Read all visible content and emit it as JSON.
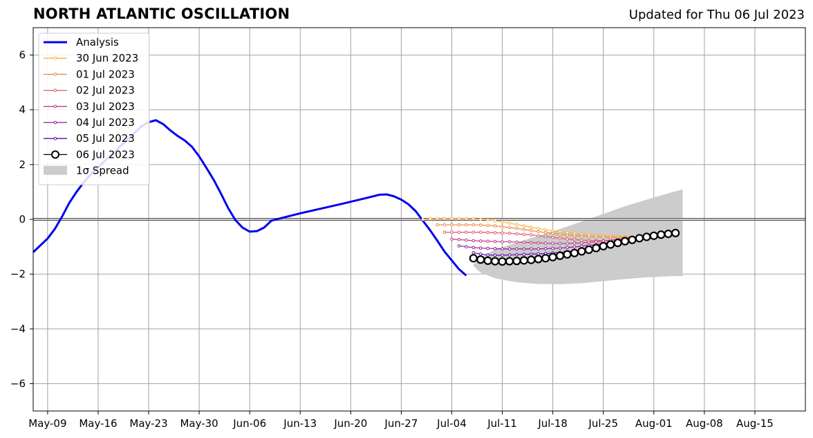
{
  "chart_data": {
    "type": "line",
    "title": "NORTH ATLANTIC OSCILLATION",
    "subtitle": "Updated for Thu 06 Jul 2023",
    "xlim": [
      "2023-05-07",
      "2023-08-22"
    ],
    "ylim": [
      -7,
      7
    ],
    "yticks": [
      -6,
      -4,
      -2,
      0,
      2,
      4,
      6
    ],
    "ytick_labels": [
      "−6",
      "−4",
      "−2",
      "0",
      "2",
      "4",
      "6"
    ],
    "xticks": [
      "2023-05-09",
      "2023-05-16",
      "2023-05-23",
      "2023-05-30",
      "2023-06-06",
      "2023-06-13",
      "2023-06-20",
      "2023-06-27",
      "2023-07-04",
      "2023-07-11",
      "2023-07-18",
      "2023-07-25",
      "2023-08-01",
      "2023-08-08",
      "2023-08-15"
    ],
    "xtick_labels": [
      "May-09",
      "May-16",
      "May-23",
      "May-30",
      "Jun-06",
      "Jun-13",
      "Jun-20",
      "Jun-27",
      "Jul-04",
      "Jul-11",
      "Jul-18",
      "Jul-25",
      "Aug-01",
      "Aug-08",
      "Aug-15"
    ],
    "grid": true,
    "zero_line": true,
    "legend_position": "top-left",
    "analysis": {
      "name": "Analysis",
      "color": "#0000ee",
      "points": [
        [
          "2023-05-07",
          -1.2
        ],
        [
          "2023-05-09",
          -0.7
        ],
        [
          "2023-05-10",
          -0.35
        ],
        [
          "2023-05-11",
          0.1
        ],
        [
          "2023-05-12",
          0.6
        ],
        [
          "2023-05-13",
          1.0
        ],
        [
          "2023-05-14",
          1.35
        ],
        [
          "2023-05-15",
          1.65
        ],
        [
          "2023-05-16",
          1.9
        ],
        [
          "2023-05-17",
          2.15
        ],
        [
          "2023-05-18",
          2.4
        ],
        [
          "2023-05-19",
          2.65
        ],
        [
          "2023-05-20",
          2.9
        ],
        [
          "2023-05-21",
          3.15
        ],
        [
          "2023-05-22",
          3.4
        ],
        [
          "2023-05-23",
          3.55
        ],
        [
          "2023-05-24",
          3.62
        ],
        [
          "2023-05-25",
          3.48
        ],
        [
          "2023-05-26",
          3.25
        ],
        [
          "2023-05-27",
          3.05
        ],
        [
          "2023-05-28",
          2.88
        ],
        [
          "2023-05-29",
          2.65
        ],
        [
          "2023-05-30",
          2.3
        ],
        [
          "2023-05-31",
          1.88
        ],
        [
          "2023-06-01",
          1.45
        ],
        [
          "2023-06-02",
          0.95
        ],
        [
          "2023-06-03",
          0.42
        ],
        [
          "2023-06-04",
          -0.02
        ],
        [
          "2023-06-05",
          -0.3
        ],
        [
          "2023-06-06",
          -0.45
        ],
        [
          "2023-06-07",
          -0.43
        ],
        [
          "2023-06-08",
          -0.3
        ],
        [
          "2023-06-09",
          -0.05
        ],
        [
          "2023-06-10",
          0.02
        ],
        [
          "2023-06-13",
          0.22
        ],
        [
          "2023-06-16",
          0.4
        ],
        [
          "2023-06-19",
          0.58
        ],
        [
          "2023-06-22",
          0.77
        ],
        [
          "2023-06-24",
          0.9
        ],
        [
          "2023-06-25",
          0.91
        ],
        [
          "2023-06-26",
          0.84
        ],
        [
          "2023-06-27",
          0.72
        ],
        [
          "2023-06-28",
          0.55
        ],
        [
          "2023-06-29",
          0.3
        ],
        [
          "2023-06-30",
          -0.05
        ],
        [
          "2023-07-01",
          -0.4
        ],
        [
          "2023-07-02",
          -0.78
        ],
        [
          "2023-07-03",
          -1.18
        ],
        [
          "2023-07-04",
          -1.5
        ],
        [
          "2023-07-05",
          -1.82
        ],
        [
          "2023-07-06",
          -2.05
        ]
      ]
    },
    "forecasts": [
      {
        "name": "30 Jun 2023",
        "color": "#f9b23f",
        "start": "2023-06-30",
        "values": [
          0.0,
          0.02,
          0.03,
          0.03,
          0.03,
          0.03,
          0.03,
          0.02,
          0.0,
          -0.02,
          -0.05,
          -0.09,
          -0.14,
          -0.19,
          -0.24,
          -0.29,
          -0.34,
          -0.38,
          -0.42,
          -0.45,
          -0.48,
          -0.51,
          -0.54,
          -0.56,
          -0.58,
          -0.6,
          -0.61,
          -0.62,
          -0.63,
          -0.63
        ]
      },
      {
        "name": "01 Jul 2023",
        "color": "#ee8540",
        "start": "2023-07-02",
        "values": [
          -0.2,
          -0.2,
          -0.2,
          -0.2,
          -0.2,
          -0.2,
          -0.21,
          -0.22,
          -0.24,
          -0.27,
          -0.3,
          -0.33,
          -0.37,
          -0.41,
          -0.45,
          -0.48,
          -0.51,
          -0.54,
          -0.57,
          -0.59,
          -0.61,
          -0.63,
          -0.64,
          -0.65,
          -0.66,
          -0.66,
          -0.66,
          -0.65,
          -0.64
        ]
      },
      {
        "name": "02 Jul 2023",
        "color": "#dc5a6a",
        "start": "2023-07-03",
        "values": [
          -0.47,
          -0.47,
          -0.47,
          -0.47,
          -0.47,
          -0.47,
          -0.48,
          -0.49,
          -0.5,
          -0.51,
          -0.53,
          -0.55,
          -0.57,
          -0.6,
          -0.63,
          -0.66,
          -0.69,
          -0.72,
          -0.74,
          -0.76,
          -0.77,
          -0.78,
          -0.78,
          -0.77,
          -0.76,
          -0.74,
          -0.71,
          -0.68
        ]
      },
      {
        "name": "03 Jul 2023",
        "color": "#bd3886",
        "start": "2023-07-04",
        "values": [
          -0.72,
          -0.74,
          -0.76,
          -0.78,
          -0.79,
          -0.8,
          -0.81,
          -0.82,
          -0.82,
          -0.83,
          -0.84,
          -0.85,
          -0.86,
          -0.87,
          -0.88,
          -0.88,
          -0.88,
          -0.87,
          -0.86,
          -0.84,
          -0.82,
          -0.79,
          -0.76,
          -0.73,
          -0.7,
          -0.67
        ]
      },
      {
        "name": "04 Jul 2023",
        "color": "#8f1aa0",
        "start": "2023-07-05",
        "values": [
          -0.97,
          -1.0,
          -1.03,
          -1.05,
          -1.06,
          -1.07,
          -1.08,
          -1.08,
          -1.08,
          -1.08,
          -1.08,
          -1.08,
          -1.07,
          -1.06,
          -1.05,
          -1.03,
          -1.01,
          -0.98,
          -0.95,
          -0.92,
          -0.88,
          -0.84,
          -0.8,
          -0.76,
          -0.72,
          -0.68
        ]
      },
      {
        "name": "05 Jul 2023",
        "color": "#5a0aa6",
        "start": "2023-07-07",
        "values": [
          -1.22,
          -1.27,
          -1.3,
          -1.31,
          -1.31,
          -1.3,
          -1.29,
          -1.28,
          -1.27,
          -1.26,
          -1.25,
          -1.23,
          -1.21,
          -1.18,
          -1.15,
          -1.12,
          -1.08,
          -1.04,
          -1.0,
          -0.95,
          -0.91,
          -0.86,
          -0.81,
          -0.76,
          -0.71
        ]
      },
      {
        "name": "06 Jul 2023",
        "color": "#000000",
        "start": "2023-07-07",
        "values": [
          -1.42,
          -1.47,
          -1.51,
          -1.53,
          -1.54,
          -1.53,
          -1.52,
          -1.5,
          -1.48,
          -1.45,
          -1.42,
          -1.38,
          -1.33,
          -1.28,
          -1.23,
          -1.17,
          -1.11,
          -1.05,
          -0.98,
          -0.92,
          -0.86,
          -0.8,
          -0.75,
          -0.69,
          -0.64,
          -0.6,
          -0.56,
          -0.53,
          -0.5
        ]
      }
    ],
    "spread": {
      "name": "1σ Spread",
      "color": "#cccccc",
      "upper": [
        [
          "2023-07-07",
          -1.65
        ],
        [
          "2023-07-08",
          -1.4
        ],
        [
          "2023-07-10",
          -1.1
        ],
        [
          "2023-07-13",
          -0.85
        ],
        [
          "2023-07-16",
          -0.6
        ],
        [
          "2023-07-19",
          -0.35
        ],
        [
          "2023-07-22",
          -0.08
        ],
        [
          "2023-07-25",
          0.2
        ],
        [
          "2023-07-28",
          0.48
        ],
        [
          "2023-07-31",
          0.72
        ],
        [
          "2023-08-03",
          0.95
        ],
        [
          "2023-08-05",
          1.1
        ]
      ],
      "lower": [
        [
          "2023-07-07",
          -1.7
        ],
        [
          "2023-07-08",
          -1.95
        ],
        [
          "2023-07-10",
          -2.15
        ],
        [
          "2023-07-13",
          -2.3
        ],
        [
          "2023-07-16",
          -2.36
        ],
        [
          "2023-07-19",
          -2.37
        ],
        [
          "2023-07-22",
          -2.33
        ],
        [
          "2023-07-25",
          -2.26
        ],
        [
          "2023-07-28",
          -2.18
        ],
        [
          "2023-07-31",
          -2.12
        ],
        [
          "2023-08-03",
          -2.08
        ],
        [
          "2023-08-05",
          -2.07
        ]
      ]
    }
  }
}
